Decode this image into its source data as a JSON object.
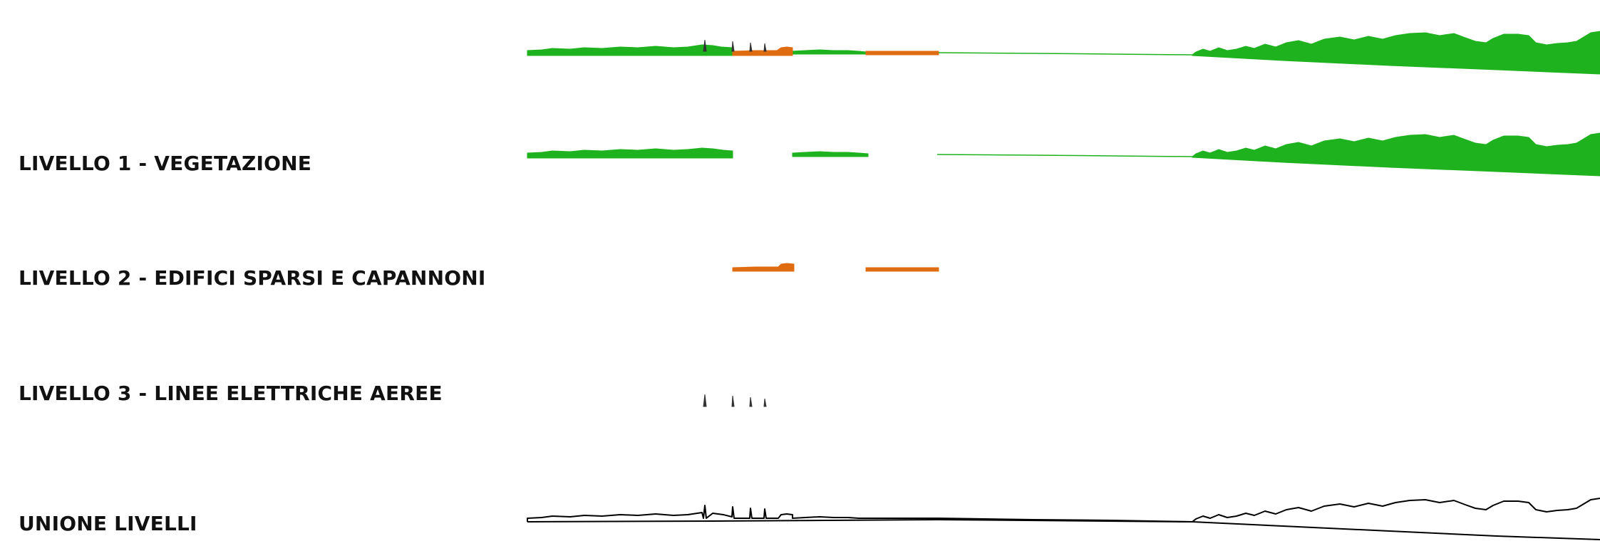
{
  "labels": {
    "vegetation": "LIVELLO 1 - VEGETAZIONE",
    "buildings": "LIVELLO 2 - EDIFICI SPARSI E CAPANNONI",
    "power_lines": "LIVELLO 3 - LINEE ELETTRICHE AEREE",
    "union": "UNIONE LIVELLI"
  },
  "colors": {
    "vegetation": "#1fb21f",
    "buildings": "#e06c12",
    "power_lines": "#333333",
    "outline": "#000000"
  }
}
